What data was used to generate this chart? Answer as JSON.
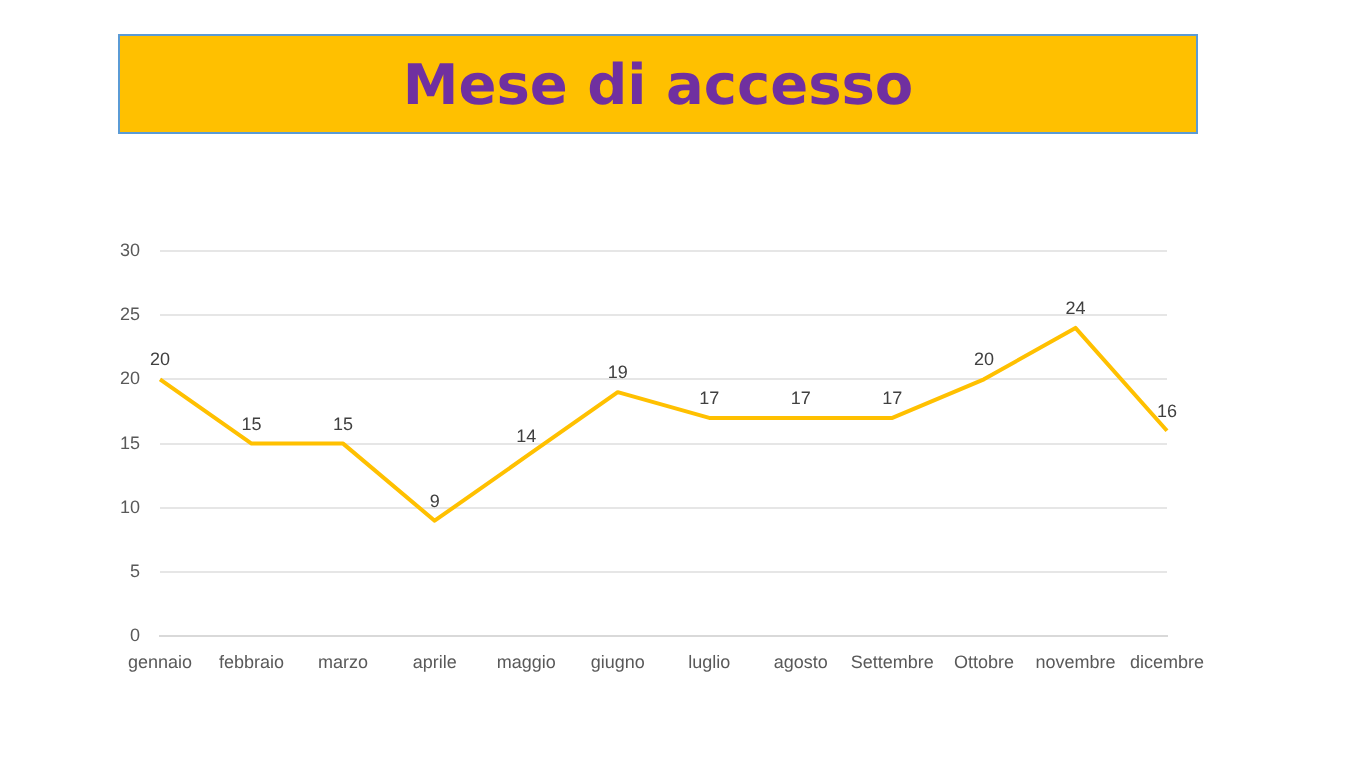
{
  "chart_data": {
    "type": "line",
    "title": "Mese di accesso",
    "categories": [
      "gennaio",
      "febbraio",
      "marzo",
      "aprile",
      "maggio",
      "giugno",
      "luglio",
      "agosto",
      "Settembre",
      "Ottobre",
      "novembre",
      "dicembre"
    ],
    "series": [
      {
        "color": "#ffc000",
        "values": [
          20,
          15,
          15,
          9,
          14,
          19,
          17,
          17,
          17,
          20,
          24,
          16
        ]
      }
    ],
    "ylim": [
      0,
      30
    ],
    "yticks": [
      0,
      5,
      10,
      15,
      20,
      25,
      30
    ],
    "grid": "y",
    "legend": false,
    "marker": "none",
    "data_labels": true
  }
}
